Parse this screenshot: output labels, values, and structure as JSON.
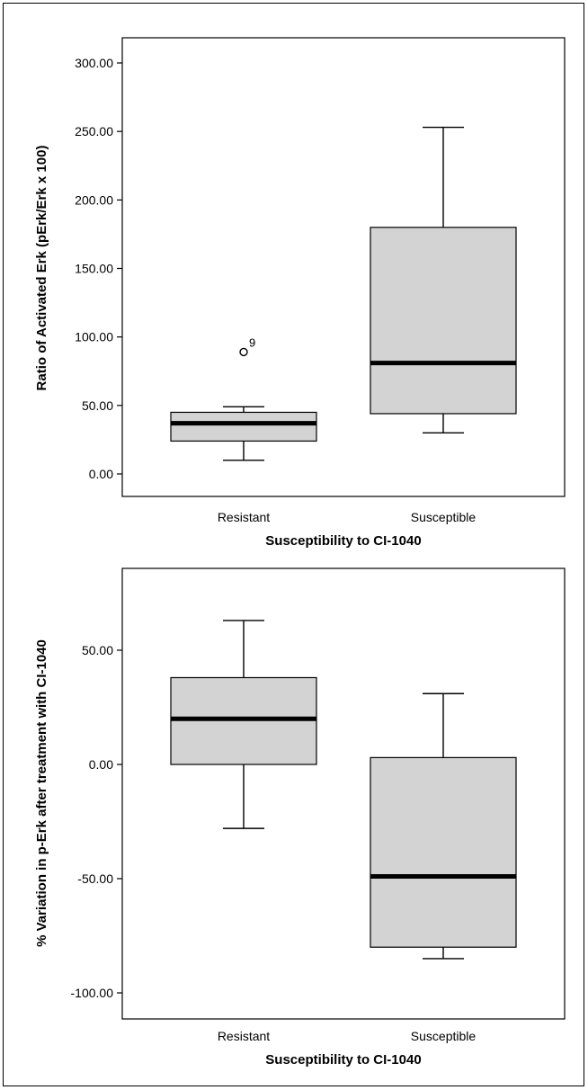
{
  "chart_data": [
    {
      "type": "box",
      "xlabel": "Susceptibility to CI-1040",
      "ylabel": "Ratio of Activated Erk (pErk/Erk x 100)",
      "categories": [
        "Resistant",
        "Susceptible"
      ],
      "ylim": [
        -10,
        320
      ],
      "yticks": [
        0,
        50,
        100,
        150,
        200,
        250,
        300
      ],
      "ytick_labels": [
        "0.00",
        "50.00",
        "100.00",
        "150.00",
        "200.00",
        "250.00",
        "300.00"
      ],
      "grid": false,
      "box_color": "#d3d3d3",
      "boxes": [
        {
          "category": "Resistant",
          "whisker_low": 10,
          "q1": 24,
          "median": 37,
          "q3": 45,
          "whisker_high": 49,
          "outliers": [
            {
              "value": 89,
              "label": "9"
            }
          ]
        },
        {
          "category": "Susceptible",
          "whisker_low": 30,
          "q1": 44,
          "median": 81,
          "q3": 180,
          "whisker_high": 253,
          "outliers": []
        }
      ]
    },
    {
      "type": "box",
      "xlabel": "Susceptibility to CI-1040",
      "ylabel": "% Variation in p-Erk after treatment with CI-1040",
      "categories": [
        "Resistant",
        "Susceptible"
      ],
      "ylim": [
        -110,
        85
      ],
      "yticks": [
        -100,
        -50,
        0,
        50
      ],
      "ytick_labels": [
        "-100.00",
        "-50.00",
        "0.00",
        "50.00"
      ],
      "grid": false,
      "box_color": "#d3d3d3",
      "boxes": [
        {
          "category": "Resistant",
          "whisker_low": -28,
          "q1": 0,
          "median": 20,
          "q3": 38,
          "whisker_high": 63,
          "outliers": []
        },
        {
          "category": "Susceptible",
          "whisker_low": -85,
          "q1": -80,
          "median": -49,
          "q3": 3,
          "whisker_high": 31,
          "outliers": []
        }
      ]
    }
  ]
}
